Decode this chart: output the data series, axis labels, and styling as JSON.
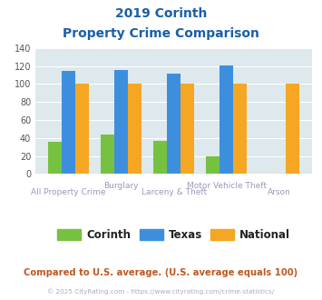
{
  "title_line1": "2019 Corinth",
  "title_line2": "Property Crime Comparison",
  "categories": [
    "All Property Crime",
    "Burglary",
    "Larceny & Theft",
    "Motor Vehicle Theft",
    "Arson"
  ],
  "cat_row1": [
    "",
    "Burglary",
    "",
    "Motor Vehicle Theft",
    ""
  ],
  "cat_row2": [
    "All Property Crime",
    "",
    "Larceny & Theft",
    "",
    "Arson"
  ],
  "corinth": [
    36,
    44,
    37,
    20,
    0
  ],
  "texas": [
    115,
    116,
    112,
    121,
    0
  ],
  "national": [
    100,
    100,
    100,
    100,
    100
  ],
  "corinth_color": "#77c141",
  "texas_color": "#3d8fde",
  "national_color": "#f5a623",
  "ylim": [
    0,
    140
  ],
  "yticks": [
    0,
    20,
    40,
    60,
    80,
    100,
    120,
    140
  ],
  "plot_bg": "#dde9ed",
  "title_color": "#1a5fa8",
  "label_color": "#9999bb",
  "footer_text": "Compared to U.S. average. (U.S. average equals 100)",
  "footer_color": "#c05820",
  "credit_text": "© 2025 CityRating.com - https://www.cityrating.com/crime-statistics/",
  "credit_color": "#aaaacc",
  "legend_labels": [
    "Corinth",
    "Texas",
    "National"
  ]
}
